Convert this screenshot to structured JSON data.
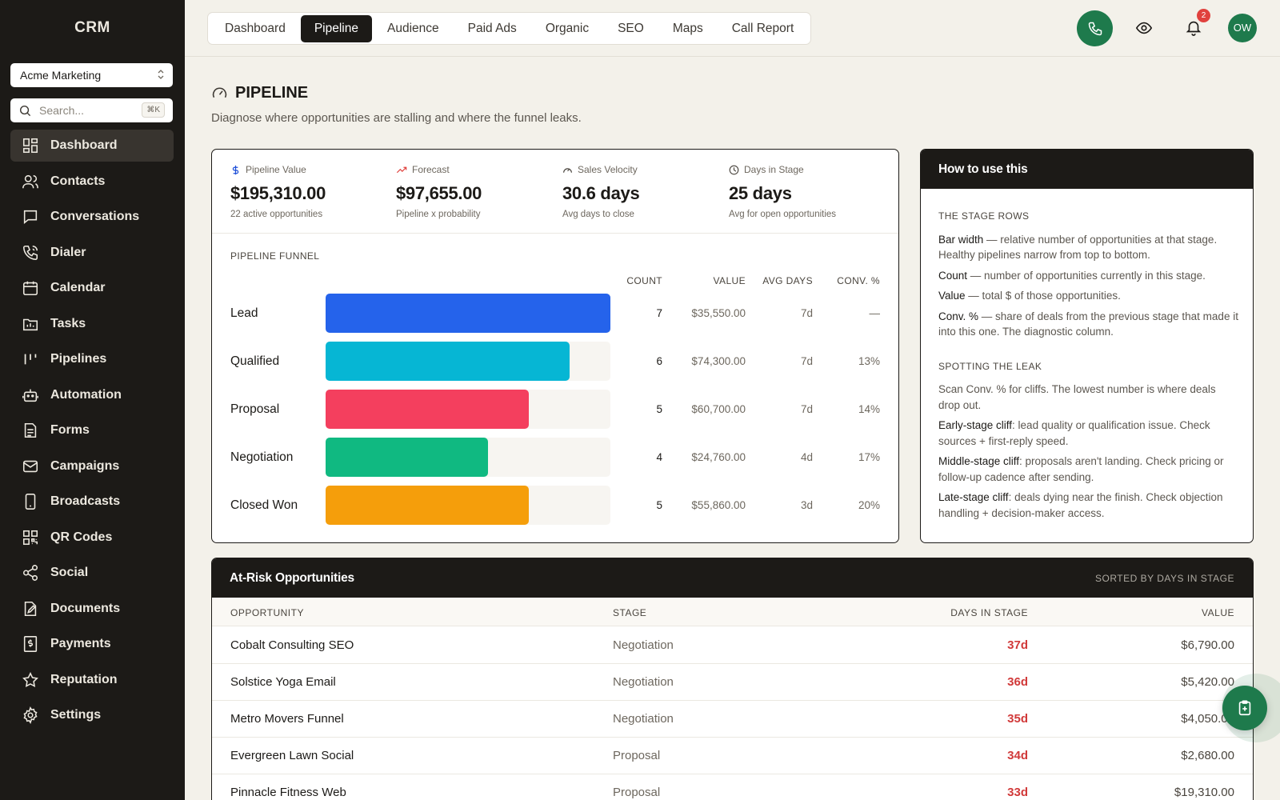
{
  "app": {
    "brand": "CRM"
  },
  "sidebar": {
    "account": "Acme Marketing",
    "search_placeholder": "Search...",
    "search_shortcut": "⌘K",
    "items": [
      {
        "label": "Dashboard",
        "icon": "dashboard-icon",
        "active": true
      },
      {
        "label": "Contacts",
        "icon": "users-icon"
      },
      {
        "label": "Conversations",
        "icon": "chat-icon"
      },
      {
        "label": "Dialer",
        "icon": "phone-icon"
      },
      {
        "label": "Calendar",
        "icon": "calendar-icon"
      },
      {
        "label": "Tasks",
        "icon": "folder-icon"
      },
      {
        "label": "Pipelines",
        "icon": "pipelines-icon"
      },
      {
        "label": "Automation",
        "icon": "bot-icon"
      },
      {
        "label": "Forms",
        "icon": "form-icon"
      },
      {
        "label": "Campaigns",
        "icon": "mail-icon"
      },
      {
        "label": "Broadcasts",
        "icon": "mobile-icon"
      },
      {
        "label": "QR Codes",
        "icon": "qr-icon"
      },
      {
        "label": "Social",
        "icon": "share-icon"
      },
      {
        "label": "Documents",
        "icon": "document-edit-icon"
      },
      {
        "label": "Payments",
        "icon": "receipt-icon"
      },
      {
        "label": "Reputation",
        "icon": "star-icon"
      },
      {
        "label": "Settings",
        "icon": "gear-icon"
      }
    ]
  },
  "topbar": {
    "tabs": [
      "Dashboard",
      "Pipeline",
      "Audience",
      "Paid Ads",
      "Organic",
      "SEO",
      "Maps",
      "Call Report"
    ],
    "active_tab": "Pipeline",
    "notification_count": "2",
    "avatar_initials": "OW",
    "accent": "#1e7a4c"
  },
  "page": {
    "title": "PIPELINE",
    "subtitle": "Diagnose where opportunities are stalling and where the funnel leaks."
  },
  "metrics": [
    {
      "label": "Pipeline Value",
      "value": "$195,310.00",
      "sub": "22 active opportunities",
      "icon": "dollar-icon"
    },
    {
      "label": "Forecast",
      "value": "$97,655.00",
      "sub": "Pipeline x probability",
      "icon": "trend-up-icon"
    },
    {
      "label": "Sales Velocity",
      "value": "30.6 days",
      "sub": "Avg days to close",
      "icon": "gauge-icon"
    },
    {
      "label": "Days in Stage",
      "value": "25 days",
      "sub": "Avg for open opportunities",
      "icon": "clock-icon"
    }
  ],
  "funnel": {
    "title": "PIPELINE FUNNEL",
    "headers": {
      "count": "COUNT",
      "value": "VALUE",
      "avg_days": "AVG DAYS",
      "conv": "CONV. %"
    },
    "rows": [
      {
        "stage": "Lead",
        "count": "7",
        "value": "$35,550.00",
        "avg_days": "7d",
        "conv": "—",
        "fill": 1.0,
        "color": "#2563eb"
      },
      {
        "stage": "Qualified",
        "count": "6",
        "value": "$74,300.00",
        "avg_days": "7d",
        "conv": "13%",
        "fill": 0.857,
        "color": "#06b6d4"
      },
      {
        "stage": "Proposal",
        "count": "5",
        "value": "$60,700.00",
        "avg_days": "7d",
        "conv": "14%",
        "fill": 0.714,
        "color": "#f43f5e"
      },
      {
        "stage": "Negotiation",
        "count": "4",
        "value": "$24,760.00",
        "avg_days": "4d",
        "conv": "17%",
        "fill": 0.571,
        "color": "#10b981"
      },
      {
        "stage": "Closed Won",
        "count": "5",
        "value": "$55,860.00",
        "avg_days": "3d",
        "conv": "20%",
        "fill": 0.714,
        "color": "#f59e0b"
      }
    ]
  },
  "help": {
    "title": "How to use this",
    "section1": "THE STAGE ROWS",
    "s1_items": [
      {
        "term": "Bar width",
        "text": " — relative number of opportunities at that stage. Healthy pipelines narrow from top to bottom."
      },
      {
        "term": "Count",
        "text": " — number of opportunities currently in this stage."
      },
      {
        "term": "Value",
        "text": " — total $ of those opportunities."
      },
      {
        "term": "Conv. %",
        "text": " — share of deals from the previous stage that made it into this one. The diagnostic column."
      }
    ],
    "section2": "SPOTTING THE LEAK",
    "s2_intro": "Scan Conv. % for cliffs. The lowest number is where deals drop out.",
    "s2_items": [
      {
        "term": "Early-stage cliff",
        "text": ": lead quality or qualification issue. Check sources + first-reply speed."
      },
      {
        "term": "Middle-stage cliff",
        "text": ": proposals aren't landing. Check pricing or follow-up cadence after sending."
      },
      {
        "term": "Late-stage cliff",
        "text": ": deals dying near the finish. Check objection handling + decision-maker access."
      }
    ]
  },
  "risk": {
    "title": "At-Risk Opportunities",
    "sort_label": "SORTED BY DAYS IN STAGE",
    "headers": {
      "opportunity": "OPPORTUNITY",
      "stage": "STAGE",
      "days": "DAYS IN STAGE",
      "value": "VALUE"
    },
    "rows": [
      {
        "opportunity": "Cobalt Consulting SEO",
        "stage": "Negotiation",
        "days": "37d",
        "value": "$6,790.00"
      },
      {
        "opportunity": "Solstice Yoga Email",
        "stage": "Negotiation",
        "days": "36d",
        "value": "$5,420.00"
      },
      {
        "opportunity": "Metro Movers Funnel",
        "stage": "Negotiation",
        "days": "35d",
        "value": "$4,050.00"
      },
      {
        "opportunity": "Evergreen Lawn Social",
        "stage": "Proposal",
        "days": "34d",
        "value": "$2,680.00"
      },
      {
        "opportunity": "Pinnacle Fitness Web",
        "stage": "Proposal",
        "days": "33d",
        "value": "$19,310.00"
      }
    ]
  }
}
